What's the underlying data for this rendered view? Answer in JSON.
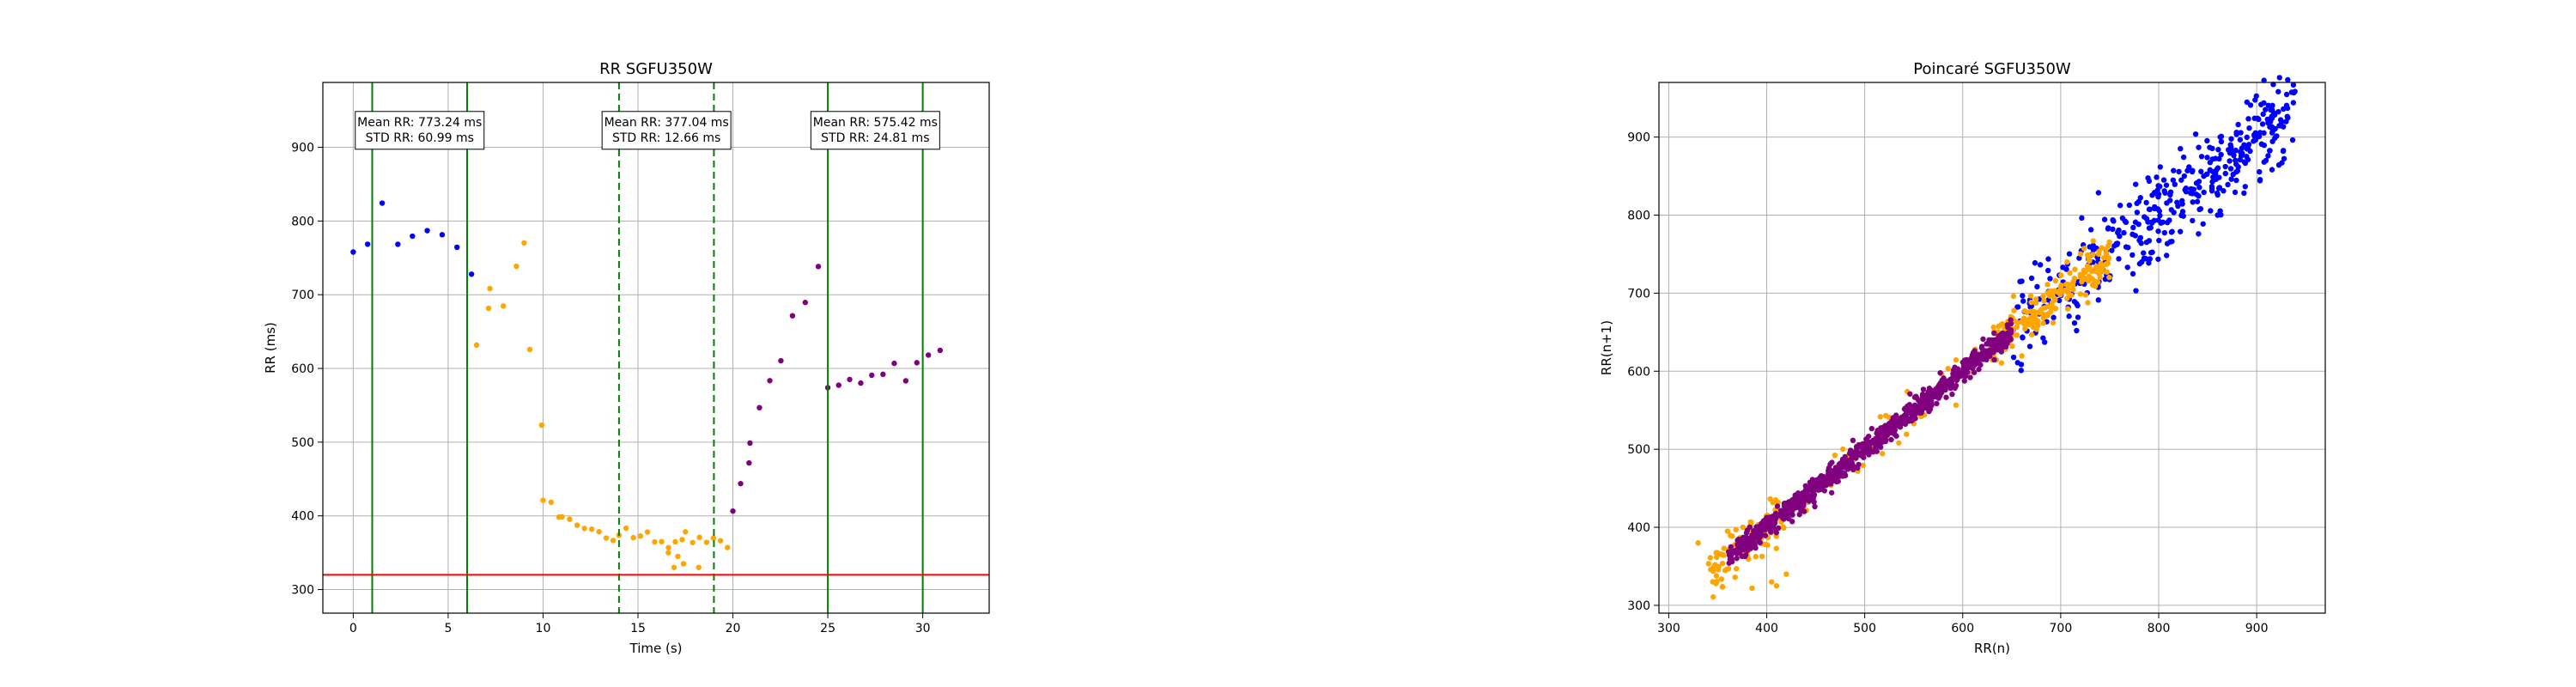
{
  "colors": {
    "blue": "#0000ff",
    "orange": "#ffa500",
    "purple": "#800080",
    "green": "#008000",
    "red": "#ff0000",
    "grid": "#b0b0b0"
  },
  "chart_data": [
    {
      "type": "scatter",
      "title": "RR SGFU350W",
      "xlabel": "Time (s)",
      "ylabel": "RR (ms)",
      "xlim": [
        -1.6,
        33.5
      ],
      "ylim": [
        268,
        988
      ],
      "xticks": [
        0,
        5,
        10,
        15,
        20,
        25,
        30
      ],
      "yticks": [
        300,
        400,
        500,
        600,
        700,
        800,
        900
      ],
      "grid": true,
      "series": [
        {
          "color": "blue",
          "segments": [
            {
              "t0": 0,
              "t1": 6.5,
              "mean": 770,
              "amp": 65,
              "trend": 0
            }
          ]
        },
        {
          "color": "orange",
          "segments": [
            {
              "t0": 6.5,
              "t1": 7.2,
              "mean": 640,
              "amp": 30,
              "trend": 50
            },
            {
              "t0": 7.2,
              "t1": 9.0,
              "mean": 690,
              "amp": 30,
              "trend": 20
            },
            {
              "t0": 9.0,
              "t1": 9.3,
              "mean": 770,
              "amp": 15,
              "trend": -50
            },
            {
              "t0": 9.3,
              "t1": 10.0,
              "mean": 640,
              "amp": 15,
              "trend": -190
            },
            {
              "t0": 10.0,
              "t1": 11.0,
              "mean": 430,
              "amp": 10,
              "trend": -25
            },
            {
              "t0": 11.0,
              "t1": 14.0,
              "mean": 402,
              "amp": 7,
              "trend": -12
            },
            {
              "t0": 14.0,
              "t1": 17.5,
              "mean": 382,
              "amp": 10,
              "trend": -6
            },
            {
              "t0": 17.5,
              "t1": 20.0,
              "mean": 370,
              "amp": 14,
              "trend": -4
            }
          ]
        },
        {
          "color": "purple",
          "segments": [
            {
              "t0": 20.0,
              "t1": 20.9,
              "mean": 410,
              "amp": 12,
              "trend": 70
            },
            {
              "t0": 20.9,
              "t1": 25.0,
              "mean": 520,
              "amp": 22,
              "trend": 60
            },
            {
              "t0": 25.0,
              "t1": 31.5,
              "mean": 575,
              "amp": 30,
              "trend": 10
            }
          ]
        }
      ],
      "vlines": [
        {
          "x": 1,
          "style": "solid",
          "color": "green"
        },
        {
          "x": 6,
          "style": "solid",
          "color": "green"
        },
        {
          "x": 14,
          "style": "dashed",
          "color": "green"
        },
        {
          "x": 19,
          "style": "dashed",
          "color": "green"
        },
        {
          "x": 25,
          "style": "solid",
          "color": "green"
        },
        {
          "x": 30,
          "style": "solid",
          "color": "green"
        }
      ],
      "hline": {
        "y": 320,
        "color": "red"
      },
      "annotations": [
        {
          "x": 3.5,
          "y": 923,
          "lines": [
            "Mean RR: 773.24 ms",
            "STD RR: 60.99 ms"
          ]
        },
        {
          "x": 16.5,
          "y": 923,
          "lines": [
            "Mean RR: 377.04 ms",
            "STD RR: 12.66 ms"
          ]
        },
        {
          "x": 27.5,
          "y": 923,
          "lines": [
            "Mean RR: 575.42 ms",
            "STD RR: 24.81 ms"
          ]
        }
      ]
    },
    {
      "type": "scatter",
      "title": "Poincaré SGFU350W",
      "xlabel": "RR(n)",
      "ylabel": "RR(n+1)",
      "xlim": [
        290,
        970
      ],
      "ylim": [
        290,
        970
      ],
      "xticks": [
        300,
        400,
        500,
        600,
        700,
        800,
        900
      ],
      "yticks": [
        300,
        400,
        500,
        600,
        700,
        800,
        900
      ],
      "grid": true,
      "series": [
        {
          "color": "blue",
          "x_range": [
            650,
            940
          ],
          "spread": 28,
          "outliers": 40
        },
        {
          "color": "orange",
          "x_range": [
            330,
            760
          ],
          "spread": 14,
          "outliers": 45
        },
        {
          "color": "purple",
          "x_range": [
            360,
            650
          ],
          "spread": 7,
          "outliers": 4
        }
      ]
    }
  ]
}
